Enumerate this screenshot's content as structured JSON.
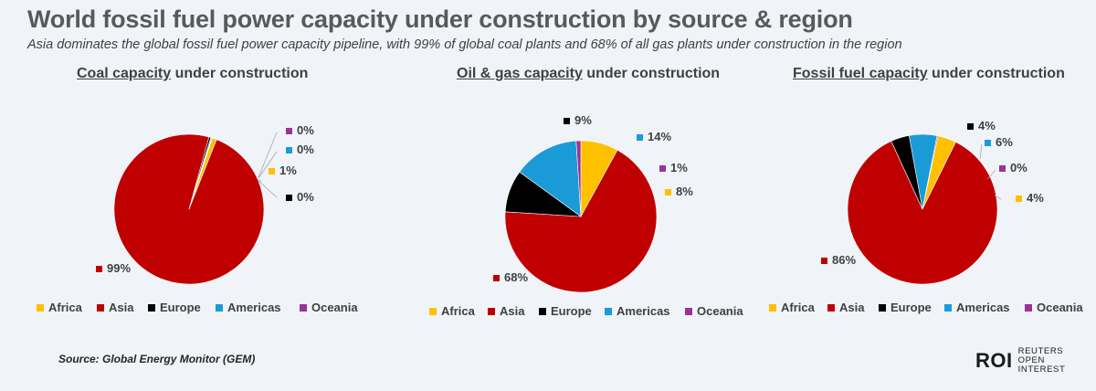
{
  "title": "World fossil fuel power capacity under construction by source & region",
  "subtitle": "Asia dominates the global fossil fuel power capacity pipeline, with 99% of global coal plants and 68% of all gas plants under construction in the region",
  "source": "Source:  Global Energy Monitor (GEM)",
  "logo": {
    "mark": "ROI",
    "text": "REUTERS OPEN INTEREST"
  },
  "colors": {
    "Africa": "#ffc000",
    "Asia": "#c00000",
    "Europe": "#000000",
    "Americas": "#1a9bd7",
    "Oceania": "#993399"
  },
  "chart_data": [
    {
      "type": "pie",
      "title_underlined": "Coal capacity",
      "title_rest": " under construction",
      "categories": [
        "Africa",
        "Asia",
        "Europe",
        "Americas",
        "Oceania"
      ],
      "values": [
        1,
        99,
        0.4,
        0.2,
        0.1
      ],
      "labels": [
        "1%",
        "99%",
        "0%",
        "0%",
        "0%"
      ],
      "legend": [
        "Africa",
        "Asia",
        "Europe",
        "Americas",
        "Oceania"
      ]
    },
    {
      "type": "pie",
      "title_underlined": "Oil & gas capacity",
      "title_rest": " under construction",
      "categories": [
        "Africa",
        "Asia",
        "Europe",
        "Americas",
        "Oceania"
      ],
      "values": [
        8,
        68,
        9,
        14,
        1
      ],
      "labels": [
        "8%",
        "68%",
        "9%",
        "14%",
        "1%"
      ],
      "legend": [
        "Africa",
        "Asia",
        "Europe",
        "Americas",
        "Oceania"
      ]
    },
    {
      "type": "pie",
      "title_underlined": "Fossil fuel capacity",
      "title_rest": " under construction",
      "categories": [
        "Africa",
        "Asia",
        "Europe",
        "Americas",
        "Oceania"
      ],
      "values": [
        4,
        86,
        4,
        6,
        0.2
      ],
      "labels": [
        "4%",
        "86%",
        "4%",
        "6%",
        "0%"
      ],
      "legend": [
        "Africa",
        "Asia",
        "Europe",
        "Americas",
        "Oceania"
      ]
    }
  ]
}
